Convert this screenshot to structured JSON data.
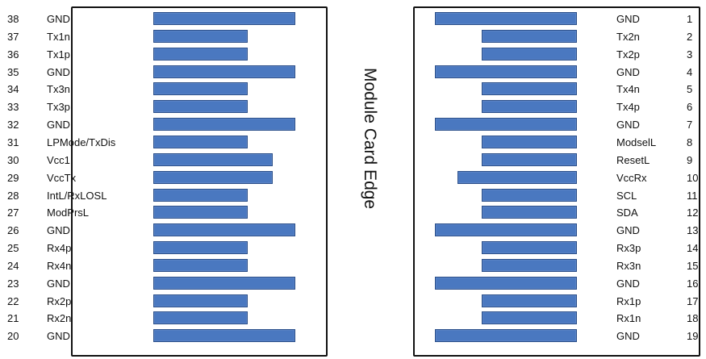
{
  "diagram": {
    "center_label": "Module Card Edge",
    "pad_color": "#4a78c0",
    "left_pins": [
      {
        "num": "38",
        "name": "GND"
      },
      {
        "num": "37",
        "name": "Tx1n"
      },
      {
        "num": "36",
        "name": "Tx1p"
      },
      {
        "num": "35",
        "name": "GND"
      },
      {
        "num": "34",
        "name": "Tx3n"
      },
      {
        "num": "33",
        "name": "Tx3p"
      },
      {
        "num": "32",
        "name": "GND"
      },
      {
        "num": "31",
        "name": "LPMode/TxDis"
      },
      {
        "num": "30",
        "name": "Vcc1"
      },
      {
        "num": "29",
        "name": "VccTx"
      },
      {
        "num": "28",
        "name": "IntL/RxLOSL"
      },
      {
        "num": "27",
        "name": "ModPrsL"
      },
      {
        "num": "26",
        "name": "GND"
      },
      {
        "num": "25",
        "name": "Rx4p"
      },
      {
        "num": "24",
        "name": "Rx4n"
      },
      {
        "num": "23",
        "name": "GND"
      },
      {
        "num": "22",
        "name": "Rx2p"
      },
      {
        "num": "21",
        "name": "Rx2n"
      },
      {
        "num": "20",
        "name": "GND"
      }
    ],
    "right_pins": [
      {
        "num": "1",
        "name": "GND"
      },
      {
        "num": "2",
        "name": "Tx2n"
      },
      {
        "num": "3",
        "name": "Tx2p"
      },
      {
        "num": "4",
        "name": "GND"
      },
      {
        "num": "5",
        "name": "Tx4n"
      },
      {
        "num": "6",
        "name": "Tx4p"
      },
      {
        "num": "7",
        "name": "GND"
      },
      {
        "num": "8",
        "name": "ModselL"
      },
      {
        "num": "9",
        "name": "ResetL"
      },
      {
        "num": "10",
        "name": "VccRx"
      },
      {
        "num": "11",
        "name": "SCL"
      },
      {
        "num": "12",
        "name": "SDA"
      },
      {
        "num": "13",
        "name": "GND"
      },
      {
        "num": "14",
        "name": "Rx3p"
      },
      {
        "num": "15",
        "name": "Rx3n"
      },
      {
        "num": "16",
        "name": "GND"
      },
      {
        "num": "17",
        "name": "Rx1p"
      },
      {
        "num": "18",
        "name": "Rx1n"
      },
      {
        "num": "19",
        "name": "GND"
      }
    ]
  }
}
